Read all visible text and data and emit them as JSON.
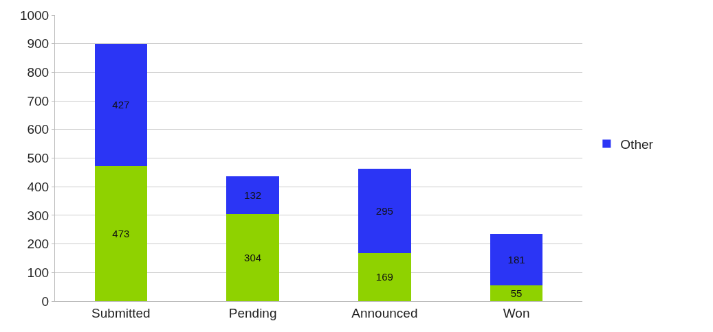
{
  "chart_data": {
    "type": "bar",
    "stacked": true,
    "data_labels": true,
    "categories": [
      "Submitted",
      "Pending",
      "Announced",
      "Won"
    ],
    "series": [
      {
        "color": "#8fd200",
        "values": [
          473,
          304,
          169,
          55
        ]
      },
      {
        "name": "Other",
        "color": "#2b35f5",
        "values": [
          427,
          132,
          295,
          181
        ]
      }
    ],
    "ylim": [
      0,
      1000
    ],
    "yticks": [
      0,
      100,
      200,
      300,
      400,
      500,
      600,
      700,
      800,
      900,
      1000
    ],
    "grid": "y",
    "legend": "right"
  }
}
